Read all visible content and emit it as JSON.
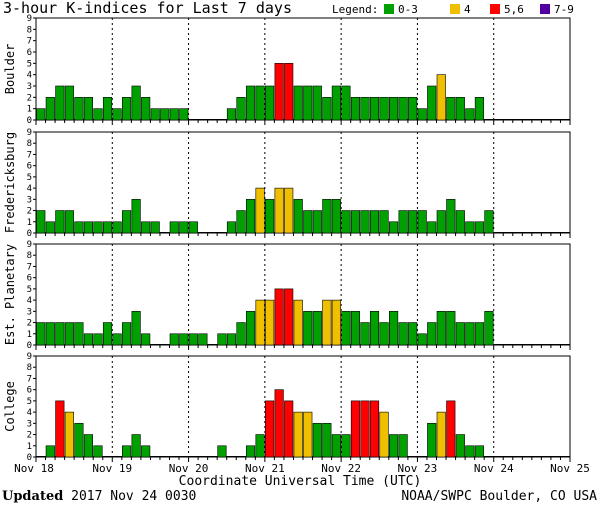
{
  "title": "3-hour K-indices for Last 7 days",
  "legend": {
    "label": "Legend:",
    "items": [
      {
        "label": "0-3",
        "color": "#00a000"
      },
      {
        "label": "4",
        "color": "#f0c000"
      },
      {
        "label": "5,6",
        "color": "#ff0000"
      },
      {
        "label": "7-9",
        "color": "#5000a0"
      }
    ]
  },
  "footer": {
    "updated_label": "Updated",
    "updated_value": "2017 Nov 24 0030",
    "source": "NOAA/SWPC Boulder, CO USA"
  },
  "chart_data": {
    "type": "bar",
    "xlabel": "Coordinate Universal Time (UTC)",
    "x_ticks": [
      "Nov 18",
      "Nov 19",
      "Nov 20",
      "Nov 21",
      "Nov 22",
      "Nov 23",
      "Nov 24",
      "Nov 25"
    ],
    "ylim": [
      0,
      9
    ],
    "y_ticks": [
      "0",
      "1",
      "2",
      "3",
      "4",
      "5",
      "6",
      "7",
      "8",
      "9"
    ],
    "panels": [
      {
        "name": "Boulder",
        "values": [
          1,
          2,
          3,
          3,
          2,
          2,
          1,
          2,
          1,
          2,
          3,
          2,
          1,
          1,
          1,
          1,
          0,
          0,
          0,
          0,
          1,
          2,
          3,
          3,
          3,
          5,
          5,
          3,
          3,
          3,
          2,
          3,
          3,
          2,
          2,
          2,
          2,
          2,
          2,
          2,
          1,
          3,
          4,
          2,
          2,
          1,
          2
        ]
      },
      {
        "name": "Fredericksburg",
        "values": [
          2,
          1,
          2,
          2,
          1,
          1,
          1,
          1,
          1,
          2,
          3,
          1,
          1,
          0,
          1,
          1,
          1,
          0,
          0,
          0,
          1,
          2,
          3,
          4,
          3,
          4,
          4,
          3,
          2,
          2,
          3,
          3,
          2,
          2,
          2,
          2,
          2,
          1,
          2,
          2,
          2,
          1,
          2,
          3,
          2,
          1,
          1,
          2
        ]
      },
      {
        "name": "Est. Planetary",
        "values": [
          2,
          2,
          2,
          2,
          2,
          1,
          1,
          2,
          1,
          2,
          3,
          1,
          0,
          0,
          1,
          1,
          1,
          1,
          0,
          1,
          1,
          2,
          3,
          4,
          4,
          5,
          5,
          4,
          3,
          3,
          4,
          4,
          3,
          3,
          2,
          3,
          2,
          3,
          2,
          2,
          1,
          2,
          3,
          3,
          2,
          2,
          2,
          3
        ]
      },
      {
        "name": "College",
        "values": [
          0,
          1,
          5,
          4,
          3,
          2,
          1,
          0,
          0,
          1,
          2,
          1,
          0,
          0,
          0,
          0,
          0,
          0,
          0,
          1,
          0,
          0,
          1,
          2,
          5,
          6,
          5,
          4,
          4,
          3,
          3,
          2,
          2,
          5,
          5,
          5,
          4,
          2,
          2,
          0,
          0,
          3,
          4,
          5,
          2,
          1,
          1
        ]
      }
    ]
  }
}
